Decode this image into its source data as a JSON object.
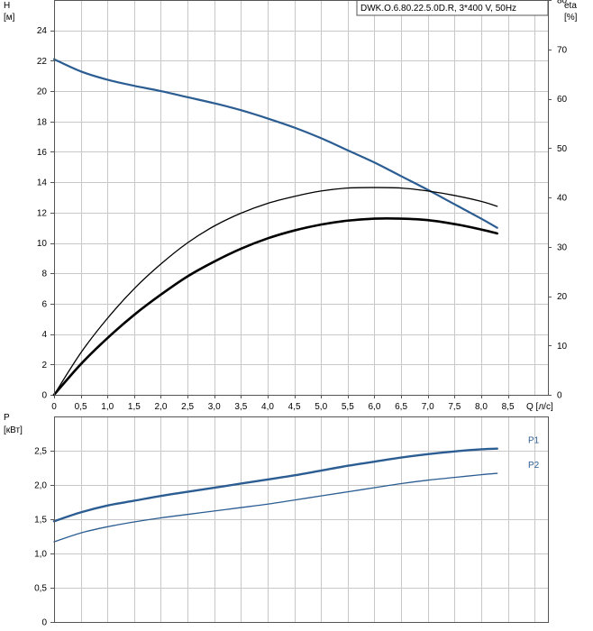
{
  "chart_data": [
    {
      "type": "line",
      "title": "DWK.O.6.80.22.5.0D.R, 3*400 V, 50Hz",
      "xlabel": "Q [л/с]",
      "ylabel": "H",
      "ylabel_unit": "[м]",
      "y2label": "eta",
      "y2label_unit": "[%]",
      "xlim": [
        0,
        9.25
      ],
      "ylim": [
        0,
        26
      ],
      "y2lim": [
        0,
        80
      ],
      "x_ticks": [
        "0",
        "0,5",
        "1,0",
        "1,5",
        "2,0",
        "2,5",
        "3,0",
        "3,5",
        "4,0",
        "4,5",
        "5,0",
        "5,5",
        "6,0",
        "6,5",
        "7,0",
        "7,5",
        "8,0",
        "8,5"
      ],
      "y_ticks": [
        "0",
        "2",
        "4",
        "6",
        "8",
        "10",
        "12",
        "14",
        "16",
        "18",
        "20",
        "22",
        "24"
      ],
      "y2_ticks": [
        "0",
        "10",
        "20",
        "30",
        "40",
        "50",
        "60",
        "70",
        "80"
      ],
      "grid": true,
      "series": [
        {
          "axis": "y",
          "color": "#2b5d92",
          "x": [
            0,
            0.5,
            1.0,
            1.5,
            2.0,
            2.5,
            3.0,
            3.5,
            4.0,
            4.5,
            5.0,
            5.5,
            6.0,
            6.5,
            7.0,
            7.5,
            8.0,
            8.3
          ],
          "values": [
            22.1,
            21.3,
            20.75,
            20.35,
            20.0,
            19.6,
            19.2,
            18.75,
            18.2,
            17.6,
            16.9,
            16.1,
            15.3,
            14.4,
            13.5,
            12.55,
            11.6,
            11.0
          ]
        },
        {
          "axis": "y2",
          "color": "#000000",
          "x": [
            0,
            0.5,
            1.0,
            1.5,
            2.0,
            2.5,
            3.0,
            3.5,
            4.0,
            4.5,
            5.0,
            5.5,
            6.0,
            6.5,
            7.0,
            7.5,
            8.0,
            8.3
          ],
          "values": [
            0,
            8.5,
            15.5,
            21.5,
            26.5,
            30.8,
            34.2,
            36.8,
            38.8,
            40.2,
            41.3,
            41.9,
            42.0,
            41.9,
            41.3,
            40.4,
            39.2,
            38.2
          ]
        },
        {
          "axis": "y2",
          "color": "#000000",
          "x": [
            0,
            0.5,
            1.0,
            1.5,
            2.0,
            2.5,
            3.0,
            3.5,
            4.0,
            4.5,
            5.0,
            5.5,
            6.0,
            6.5,
            7.0,
            7.5,
            8.0,
            8.3
          ],
          "values": [
            0,
            6.2,
            11.5,
            16.2,
            20.3,
            24.0,
            27.0,
            29.6,
            31.7,
            33.3,
            34.5,
            35.3,
            35.7,
            35.7,
            35.4,
            34.6,
            33.5,
            32.7
          ]
        }
      ]
    },
    {
      "type": "line",
      "ylabel": "P",
      "ylabel_unit": "[кВт]",
      "xlim": [
        0,
        9.25
      ],
      "ylim": [
        0,
        3.0
      ],
      "y_ticks": [
        "0",
        "0,5",
        "1,0",
        "1,5",
        "2,0",
        "2,5"
      ],
      "grid": true,
      "series": [
        {
          "name": "P1",
          "color": "#2b5d92",
          "x": [
            0,
            0.5,
            1.0,
            1.5,
            2.0,
            2.5,
            3.0,
            3.5,
            4.0,
            4.5,
            5.0,
            5.5,
            6.0,
            6.5,
            7.0,
            7.5,
            8.0,
            8.3
          ],
          "values": [
            1.47,
            1.6,
            1.7,
            1.77,
            1.84,
            1.9,
            1.96,
            2.02,
            2.08,
            2.14,
            2.21,
            2.28,
            2.34,
            2.4,
            2.45,
            2.49,
            2.52,
            2.53
          ]
        },
        {
          "name": "P2",
          "color": "#2b5d92",
          "x": [
            0,
            0.5,
            1.0,
            1.5,
            2.0,
            2.5,
            3.0,
            3.5,
            4.0,
            4.5,
            5.0,
            5.5,
            6.0,
            6.5,
            7.0,
            7.5,
            8.0,
            8.3
          ],
          "values": [
            1.17,
            1.3,
            1.39,
            1.46,
            1.52,
            1.57,
            1.62,
            1.67,
            1.72,
            1.78,
            1.84,
            1.9,
            1.96,
            2.02,
            2.07,
            2.11,
            2.15,
            2.17
          ]
        }
      ]
    }
  ]
}
